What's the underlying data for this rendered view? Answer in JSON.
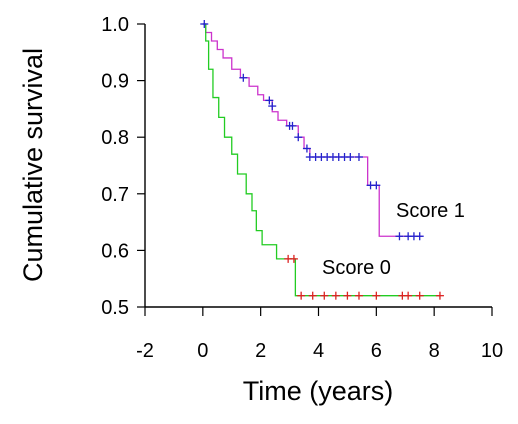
{
  "chart_data": {
    "type": "line",
    "subtype": "kaplan-meier step",
    "xlabel": "Time (years)",
    "ylabel": "Cumulative survival",
    "xlim": [
      -2,
      10
    ],
    "ylim": [
      0.5,
      1.0
    ],
    "xticks": [
      "-2",
      "0",
      "2",
      "4",
      "6",
      "8",
      "10"
    ],
    "yticks": [
      "0.5",
      "0.6",
      "0.7",
      "0.8",
      "0.9",
      "1.0"
    ],
    "grid": false,
    "legend": "inline labels",
    "series": [
      {
        "name": "Score 1",
        "line_color": "#cc33cc",
        "censor_color": "#2222cc",
        "steps": [
          [
            0,
            1.0
          ],
          [
            0.1,
            0.985
          ],
          [
            0.3,
            0.97
          ],
          [
            0.5,
            0.955
          ],
          [
            0.7,
            0.94
          ],
          [
            1.0,
            0.92
          ],
          [
            1.3,
            0.905
          ],
          [
            1.6,
            0.89
          ],
          [
            1.9,
            0.875
          ],
          [
            2.1,
            0.865
          ],
          [
            2.4,
            0.845
          ],
          [
            2.6,
            0.83
          ],
          [
            2.9,
            0.82
          ],
          [
            3.3,
            0.8
          ],
          [
            3.5,
            0.78
          ],
          [
            3.7,
            0.765
          ],
          [
            5.7,
            0.715
          ],
          [
            6.1,
            0.625
          ],
          [
            7.6,
            0.625
          ]
        ],
        "censored": [
          [
            0.05,
            1.0
          ],
          [
            1.4,
            0.905
          ],
          [
            2.3,
            0.865
          ],
          [
            2.4,
            0.855
          ],
          [
            3.0,
            0.82
          ],
          [
            3.1,
            0.82
          ],
          [
            3.3,
            0.8
          ],
          [
            3.6,
            0.78
          ],
          [
            3.7,
            0.765
          ],
          [
            3.9,
            0.765
          ],
          [
            4.1,
            0.765
          ],
          [
            4.3,
            0.765
          ],
          [
            4.5,
            0.765
          ],
          [
            4.7,
            0.765
          ],
          [
            4.9,
            0.765
          ],
          [
            5.1,
            0.765
          ],
          [
            5.4,
            0.765
          ],
          [
            5.8,
            0.715
          ],
          [
            6.0,
            0.715
          ],
          [
            6.8,
            0.625
          ],
          [
            7.1,
            0.625
          ],
          [
            7.3,
            0.625
          ],
          [
            7.5,
            0.625
          ]
        ]
      },
      {
        "name": "Score 0",
        "line_color": "#22cc22",
        "censor_color": "#dd2222",
        "steps": [
          [
            0,
            1.0
          ],
          [
            0.1,
            0.97
          ],
          [
            0.2,
            0.92
          ],
          [
            0.35,
            0.87
          ],
          [
            0.55,
            0.835
          ],
          [
            0.75,
            0.8
          ],
          [
            1.0,
            0.77
          ],
          [
            1.2,
            0.735
          ],
          [
            1.5,
            0.7
          ],
          [
            1.7,
            0.67
          ],
          [
            1.85,
            0.635
          ],
          [
            2.05,
            0.61
          ],
          [
            2.55,
            0.585
          ],
          [
            3.2,
            0.52
          ],
          [
            8.2,
            0.52
          ]
        ],
        "censored": [
          [
            2.95,
            0.585
          ],
          [
            3.15,
            0.585
          ],
          [
            3.4,
            0.52
          ],
          [
            3.8,
            0.52
          ],
          [
            4.2,
            0.52
          ],
          [
            4.6,
            0.52
          ],
          [
            5.0,
            0.52
          ],
          [
            5.4,
            0.52
          ],
          [
            6.0,
            0.52
          ],
          [
            6.9,
            0.52
          ],
          [
            7.1,
            0.52
          ],
          [
            7.5,
            0.52
          ],
          [
            8.2,
            0.52
          ]
        ]
      }
    ]
  }
}
